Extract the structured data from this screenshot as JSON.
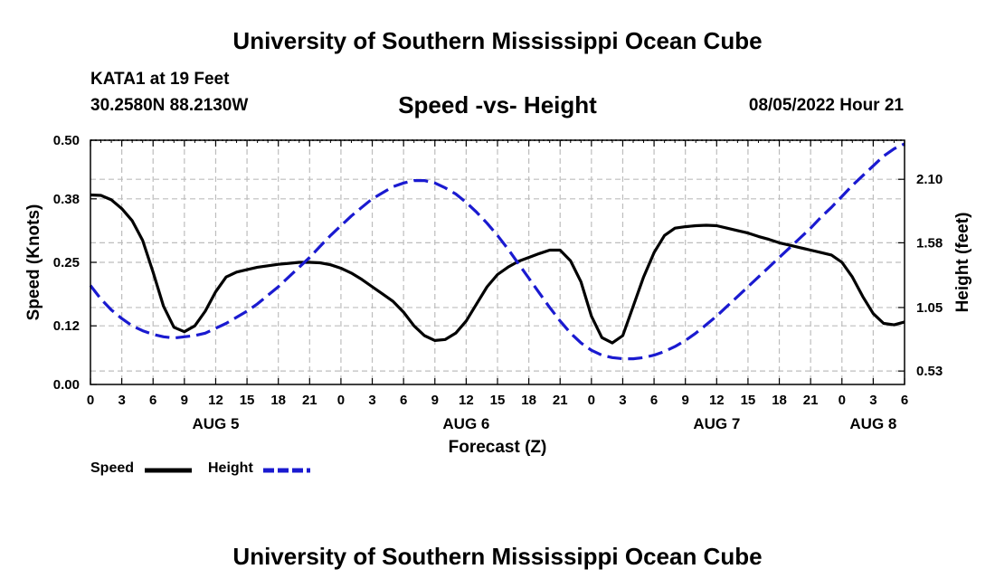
{
  "header": {
    "title": "University of Southern Mississippi Ocean Cube",
    "station": "KATA1 at 19 Feet",
    "coords": "30.2580N  88.2130W",
    "date": "08/05/2022 Hour 21"
  },
  "footer": {
    "title": "University of Southern Mississippi Ocean Cube"
  },
  "chart_data": {
    "type": "line",
    "title": "Speed -vs- Height",
    "xlabel": "Forecast (Z)",
    "ylabel": "Speed (Knots)",
    "y2label": "Height (feet)",
    "grid": true,
    "legend_position": "bottom-left",
    "x_range": [
      0,
      78
    ],
    "x_tick_values": [
      0,
      3,
      6,
      9,
      12,
      15,
      18,
      21,
      24,
      27,
      30,
      33,
      36,
      39,
      42,
      45,
      48,
      51,
      54,
      57,
      60,
      63,
      66,
      69,
      72,
      75,
      78
    ],
    "x_tick_labels": [
      "0",
      "3",
      "6",
      "9",
      "12",
      "15",
      "18",
      "21",
      "0",
      "3",
      "6",
      "9",
      "12",
      "15",
      "18",
      "21",
      "0",
      "3",
      "6",
      "9",
      "12",
      "15",
      "18",
      "21",
      "0",
      "3",
      "6"
    ],
    "day_labels": [
      {
        "x": 12,
        "label": "AUG 5"
      },
      {
        "x": 36,
        "label": "AUG 6"
      },
      {
        "x": 60,
        "label": "AUG 7"
      },
      {
        "x": 75,
        "label": "AUG 8"
      }
    ],
    "ylim": [
      0,
      0.5
    ],
    "y_ticks": [
      "0.00",
      "0.12",
      "0.25",
      "0.38",
      "0.50"
    ],
    "y2lim": [
      0.42,
      2.42
    ],
    "y2_ticks": [
      "0.53",
      "1.05",
      "1.58",
      "2.10"
    ],
    "series": [
      {
        "name": "Speed",
        "axis": "left",
        "color": "#000000",
        "style": "solid",
        "x": [
          0,
          1,
          2,
          3,
          4,
          5,
          6,
          7,
          8,
          9,
          10,
          11,
          12,
          13,
          14,
          15,
          16,
          17,
          18,
          19,
          20,
          21,
          22,
          23,
          24,
          25,
          26,
          27,
          28,
          29,
          30,
          31,
          32,
          33,
          34,
          35,
          36,
          37,
          38,
          39,
          40,
          41,
          42,
          43,
          44,
          45,
          46,
          47,
          48,
          49,
          50,
          51,
          52,
          53,
          54,
          55,
          56,
          57,
          58,
          59,
          60,
          61,
          62,
          63,
          64,
          65,
          66,
          67,
          68,
          69,
          70,
          71,
          72,
          73,
          74,
          75,
          76,
          77,
          78
        ],
        "values": [
          0.388,
          0.387,
          0.378,
          0.36,
          0.335,
          0.295,
          0.23,
          0.16,
          0.117,
          0.108,
          0.12,
          0.15,
          0.19,
          0.22,
          0.23,
          0.235,
          0.24,
          0.243,
          0.246,
          0.248,
          0.25,
          0.25,
          0.249,
          0.245,
          0.238,
          0.228,
          0.215,
          0.2,
          0.185,
          0.17,
          0.148,
          0.12,
          0.1,
          0.09,
          0.092,
          0.105,
          0.13,
          0.165,
          0.2,
          0.225,
          0.24,
          0.252,
          0.26,
          0.268,
          0.275,
          0.275,
          0.253,
          0.21,
          0.14,
          0.096,
          0.085,
          0.1,
          0.16,
          0.22,
          0.27,
          0.305,
          0.32,
          0.323,
          0.325,
          0.326,
          0.325,
          0.32,
          0.315,
          0.31,
          0.303,
          0.297,
          0.29,
          0.285,
          0.28,
          0.275,
          0.27,
          0.265,
          0.25,
          0.22,
          0.18,
          0.145,
          0.125,
          0.122,
          0.128
        ]
      },
      {
        "name": "Height",
        "axis": "right",
        "color": "#1a1ad0",
        "style": "dashed",
        "x": [
          0,
          1,
          2,
          3,
          4,
          5,
          6,
          7,
          8,
          9,
          10,
          11,
          12,
          13,
          14,
          15,
          16,
          17,
          18,
          19,
          20,
          21,
          22,
          23,
          24,
          25,
          26,
          27,
          28,
          29,
          30,
          31,
          32,
          33,
          34,
          35,
          36,
          37,
          38,
          39,
          40,
          41,
          42,
          43,
          44,
          45,
          46,
          47,
          48,
          49,
          50,
          51,
          52,
          53,
          54,
          55,
          56,
          57,
          58,
          59,
          60,
          61,
          62,
          63,
          64,
          65,
          66,
          67,
          68,
          69,
          70,
          71,
          72,
          73,
          74,
          75,
          76,
          77,
          78
        ],
        "values": [
          1.23,
          1.12,
          1.03,
          0.96,
          0.9,
          0.86,
          0.83,
          0.81,
          0.8,
          0.81,
          0.82,
          0.84,
          0.88,
          0.92,
          0.97,
          1.02,
          1.08,
          1.15,
          1.22,
          1.3,
          1.38,
          1.46,
          1.55,
          1.64,
          1.72,
          1.8,
          1.87,
          1.94,
          1.99,
          2.04,
          2.07,
          2.09,
          2.09,
          2.07,
          2.03,
          1.98,
          1.91,
          1.83,
          1.74,
          1.64,
          1.53,
          1.41,
          1.29,
          1.17,
          1.05,
          0.94,
          0.84,
          0.76,
          0.7,
          0.66,
          0.64,
          0.63,
          0.63,
          0.64,
          0.66,
          0.69,
          0.73,
          0.78,
          0.84,
          0.91,
          0.98,
          1.06,
          1.14,
          1.22,
          1.3,
          1.38,
          1.46,
          1.54,
          1.62,
          1.7,
          1.79,
          1.87,
          1.96,
          2.05,
          2.13,
          2.21,
          2.29,
          2.35,
          2.39
        ]
      }
    ]
  }
}
